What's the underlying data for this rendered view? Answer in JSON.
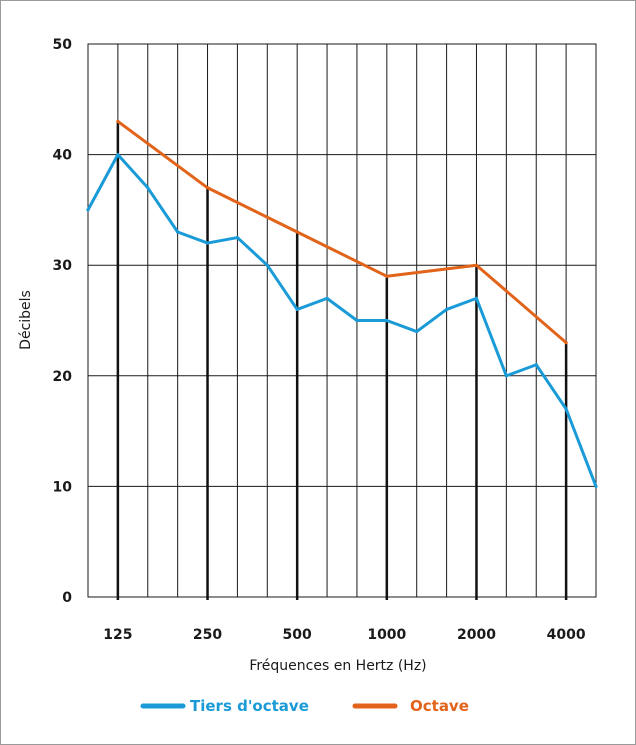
{
  "chart_data": {
    "type": "line",
    "title": "",
    "xlabel": "Fréquences en Hertz (Hz)",
    "ylabel": "Décibels",
    "ylim": [
      0,
      50
    ],
    "yticks": [
      0,
      10,
      20,
      30,
      40,
      50
    ],
    "x_tick_labels": [
      "125",
      "250",
      "500",
      "1000",
      "2000",
      "4000"
    ],
    "grid": true,
    "legend_position": "bottom",
    "series": [
      {
        "name": "Tiers d'octave",
        "color": "#1a9bd7",
        "points": [
          [
            "100",
            35
          ],
          [
            "125",
            40
          ],
          [
            "160",
            37
          ],
          [
            "200",
            33
          ],
          [
            "250",
            32
          ],
          [
            "315",
            32.5
          ],
          [
            "400",
            30
          ],
          [
            "500",
            26
          ],
          [
            "630",
            27
          ],
          [
            "800",
            25
          ],
          [
            "1000",
            25
          ],
          [
            "1250",
            24
          ],
          [
            "1600",
            26
          ],
          [
            "2000",
            27
          ],
          [
            "2500",
            20
          ],
          [
            "3150",
            21
          ],
          [
            "4000",
            17
          ],
          [
            "5000",
            10
          ]
        ]
      },
      {
        "name": "Octave",
        "color": "#e2631a",
        "points": [
          [
            "125",
            43
          ],
          [
            "250",
            37
          ],
          [
            "500",
            33
          ],
          [
            "1000",
            29
          ],
          [
            "2000",
            30
          ],
          [
            "4000",
            23
          ]
        ]
      }
    ]
  }
}
